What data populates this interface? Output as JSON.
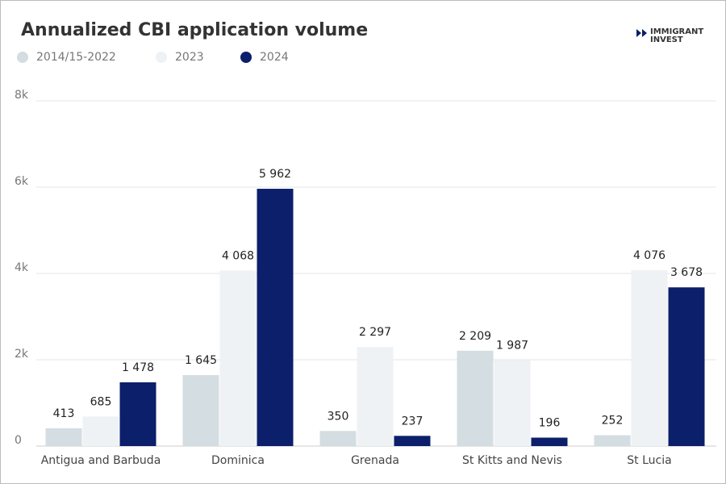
{
  "logo": [
    "IMMIGRANT",
    "INVEST"
  ],
  "chart_data": {
    "type": "bar",
    "title": "Annualized CBI application volume",
    "categories": [
      "Antigua and Barbuda",
      "Dominica",
      "Grenada",
      "St Kitts and Nevis",
      "St Lucia"
    ],
    "series": [
      {
        "name": "2014/15-2022",
        "color": "#d4dde1",
        "values": [
          413,
          1645,
          350,
          2209,
          252
        ],
        "value_labels": [
          "413",
          "1 645",
          "350",
          "2 209",
          "252"
        ]
      },
      {
        "name": "2023",
        "color": "#eef2f5",
        "values": [
          685,
          4068,
          2297,
          1987,
          4076
        ],
        "value_labels": [
          "685",
          "4 068",
          "2 297",
          "1 987",
          "4 076"
        ]
      },
      {
        "name": "2024",
        "color": "#0b1f6b",
        "values": [
          1478,
          5962,
          237,
          196,
          3678
        ],
        "value_labels": [
          "1 478",
          "5 962",
          "237",
          "196",
          "3 678"
        ]
      }
    ],
    "ylim": [
      0,
      8000
    ],
    "yticks": [
      0,
      {
        "value": 2000,
        "label": "2k"
      },
      {
        "value": 4000,
        "label": "4k"
      },
      {
        "value": 6000,
        "label": "6k"
      },
      {
        "value": 8000,
        "label": "8k"
      }
    ],
    "grid": true,
    "legend": "top-left"
  }
}
